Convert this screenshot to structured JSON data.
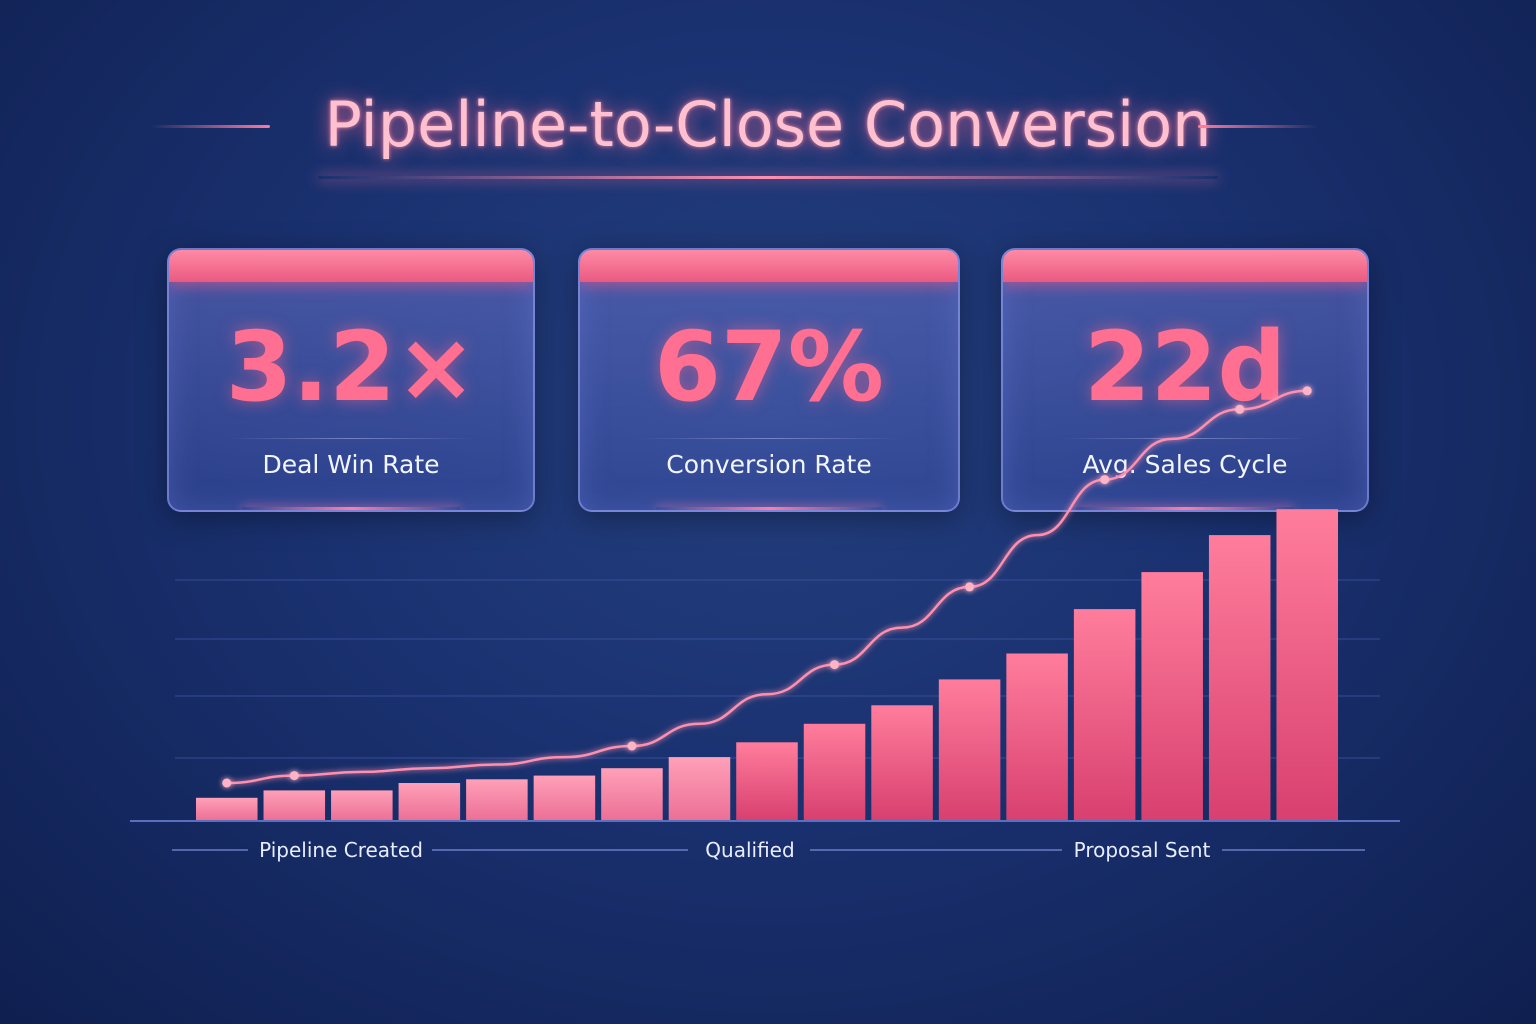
{
  "title": "Pipeline-to-Close Conversion",
  "kpis": [
    {
      "value": "3.2×",
      "label": "Deal Win Rate"
    },
    {
      "value": "67%",
      "label": "Conversion Rate"
    },
    {
      "value": "22d",
      "label": "Avg. Sales Cycle"
    }
  ],
  "colors": {
    "accent": "#ff6f91",
    "background": "#1a3170",
    "bar_top": "#ff6f8f",
    "bar_bottom": "#d93a6a"
  },
  "chart_data": {
    "type": "bar",
    "title": "",
    "xlabel": "",
    "ylabel": "",
    "ylim": [
      0,
      100
    ],
    "grid": true,
    "stage_labels": [
      "Pipeline Created",
      "Qualified",
      "Proposal Sent"
    ],
    "values": [
      6,
      8,
      8,
      10,
      11,
      12,
      14,
      17,
      21,
      26,
      31,
      38,
      45,
      57,
      67,
      77,
      84
    ],
    "trend": [
      10,
      12,
      13,
      14,
      15,
      17,
      20,
      26,
      34,
      42,
      52,
      63,
      77,
      92,
      103,
      111,
      116
    ]
  }
}
